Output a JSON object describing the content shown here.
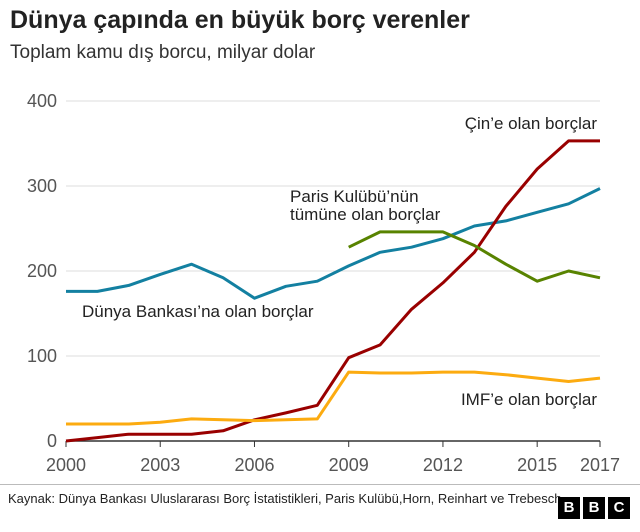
{
  "title": "Dünya çapında en büyük borç verenler",
  "subtitle": "Toplam kamu dış borcu, milyar dolar",
  "source": "Kaynak: Dünya Bankası Uluslararası Borç İstatistikleri, Paris Kulübü,Horn, Reinhart ve Trebesch",
  "logo": [
    "B",
    "B",
    "C"
  ],
  "chart_data": {
    "type": "line",
    "xlim": [
      2000,
      2017
    ],
    "ylim": [
      0,
      400
    ],
    "x_ticks": [
      2000,
      2003,
      2006,
      2009,
      2012,
      2015,
      2017
    ],
    "y_ticks": [
      0,
      100,
      200,
      300,
      400
    ],
    "grid": true,
    "series": [
      {
        "name": "Dünya Bankası’na olan borçlar",
        "color": "#1380a1",
        "x": [
          2000,
          2001,
          2002,
          2003,
          2004,
          2005,
          2006,
          2007,
          2008,
          2009,
          2010,
          2011,
          2012,
          2013,
          2014,
          2015,
          2016,
          2017
        ],
        "y": [
          176,
          176,
          183,
          196,
          208,
          192,
          168,
          182,
          188,
          206,
          222,
          228,
          238,
          253,
          259,
          269,
          279,
          297
        ]
      },
      {
        "name": "Çin’e olan borçlar",
        "color": "#990000",
        "x": [
          2000,
          2001,
          2002,
          2003,
          2004,
          2005,
          2006,
          2007,
          2008,
          2009,
          2010,
          2011,
          2012,
          2013,
          2014,
          2015,
          2016,
          2017
        ],
        "y": [
          0,
          4,
          8,
          8,
          8,
          12,
          25,
          33,
          42,
          98,
          113,
          155,
          186,
          222,
          276,
          320,
          353,
          353
        ]
      },
      {
        "name": "Paris Kulübü’nün tümüne olan borçlar",
        "color": "#588300",
        "x": [
          2009,
          2010,
          2011,
          2012,
          2013,
          2014,
          2015,
          2016,
          2017
        ],
        "y": [
          228,
          246,
          246,
          246,
          230,
          208,
          188,
          200,
          192
        ]
      },
      {
        "name": "IMF’e olan borçlar",
        "color": "#fcab10",
        "x": [
          2000,
          2001,
          2002,
          2003,
          2004,
          2005,
          2006,
          2007,
          2008,
          2009,
          2010,
          2011,
          2012,
          2013,
          2014,
          2015,
          2016,
          2017
        ],
        "y": [
          20,
          20,
          20,
          22,
          26,
          25,
          24,
          25,
          26,
          81,
          80,
          80,
          81,
          81,
          78,
          74,
          70,
          74
        ]
      }
    ],
    "annotations": [
      {
        "lines": [
          "Çin’e olan borçlar"
        ],
        "color": "#222222"
      },
      {
        "lines": [
          "Paris Kulübü’nün",
          "tümüne olan borçlar"
        ],
        "color": "#222222"
      },
      {
        "lines": [
          "Dünya Bankası’na olan borçlar"
        ],
        "color": "#222222"
      },
      {
        "lines": [
          "IMF’e olan borçlar"
        ],
        "color": "#222222"
      }
    ]
  }
}
